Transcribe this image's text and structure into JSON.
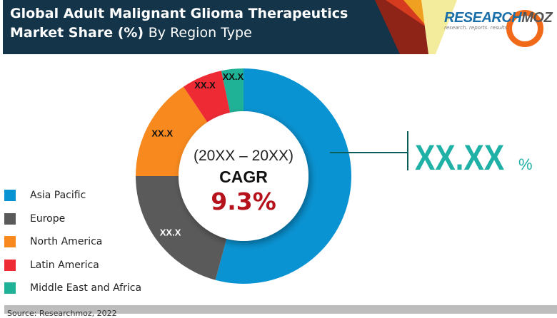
{
  "header": {
    "title_bold_1": "Global Adult Malignant Glioma Therapeutics",
    "title_bold_2": "Market Share (%)",
    "title_light": "By Region Type"
  },
  "logo": {
    "main": "RESEARCH",
    "moz": "MOZ",
    "tagline": "research. reports. results"
  },
  "center": {
    "period": "(20XX – 20XX)",
    "label": "CAGR",
    "value": "9.3%"
  },
  "callout": {
    "value": "XX.XX",
    "unit": "%"
  },
  "footer": {
    "source": "Source: Researchmoz, 2022"
  },
  "chart_data": {
    "type": "pie",
    "donut": true,
    "title": "Global Adult Malignant Glioma Therapeutics Market Share (%) By Region Type",
    "legend_position": "left",
    "categories": [
      "Asia Pacific",
      "Europe",
      "North America",
      "Latin America",
      "Middle East and Africa"
    ],
    "values": [
      54.2,
      20.8,
      15.6,
      6.1,
      3.3
    ],
    "data_labels": [
      "",
      "XX.X",
      "XX.X",
      "XX.X",
      "XX.X"
    ],
    "colors": [
      "#0a93d2",
      "#5a5a5a",
      "#f7891e",
      "#ee2a35",
      "#1fb296"
    ]
  }
}
